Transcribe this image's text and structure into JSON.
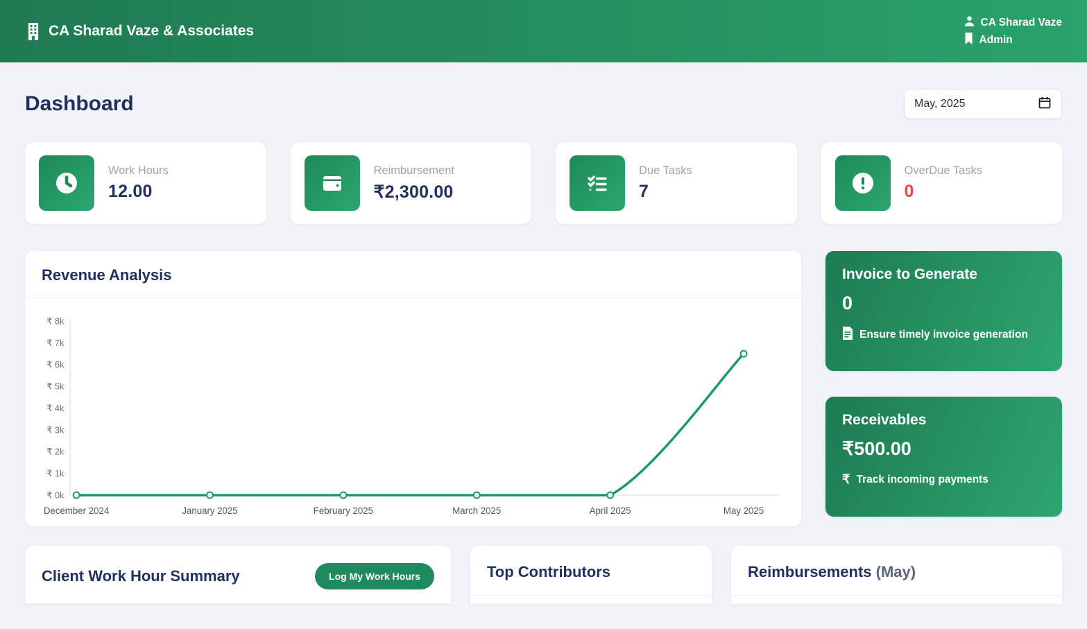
{
  "header": {
    "brand": "CA Sharad Vaze & Associates",
    "user_name": "CA Sharad Vaze",
    "user_role": "Admin"
  },
  "page": {
    "title": "Dashboard",
    "date_filter_value": "May, 2025"
  },
  "stats": [
    {
      "label": "Work Hours",
      "value": "12.00",
      "icon": "clock-icon",
      "value_color": "#22305e"
    },
    {
      "label": "Reimbursement",
      "value": "₹2,300.00",
      "icon": "wallet-icon",
      "value_color": "#22305e"
    },
    {
      "label": "Due Tasks",
      "value": "7",
      "icon": "checklist-icon",
      "value_color": "#22305e"
    },
    {
      "label": "OverDue Tasks",
      "value": "0",
      "icon": "exclamation-icon",
      "value_color": "#ef4444"
    }
  ],
  "revenue": {
    "title": "Revenue Analysis"
  },
  "chart_data": {
    "type": "line",
    "title": "Revenue Analysis",
    "x": [
      "December 2024",
      "January 2025",
      "February 2025",
      "March 2025",
      "April 2025",
      "May 2025"
    ],
    "series": [
      {
        "name": "Revenue",
        "values": [
          0,
          0,
          0,
          0,
          0,
          6500
        ]
      }
    ],
    "ylim": [
      0,
      8000
    ],
    "yticks": {
      "values": [
        0,
        1000,
        2000,
        3000,
        4000,
        5000,
        6000,
        7000,
        8000
      ],
      "labels": [
        "₹ 0k",
        "₹ 1k",
        "₹ 2k",
        "₹ 3k",
        "₹ 4k",
        "₹ 5k",
        "₹ 6k",
        "₹ 7k",
        "₹ 8k"
      ]
    },
    "line_color": "#1a9b66",
    "marker": "open-circle",
    "grid": false,
    "legend": "none"
  },
  "promos": [
    {
      "title": "Invoice to Generate",
      "value": "0",
      "note": "Ensure timely invoice generation",
      "icon": "invoice-icon"
    },
    {
      "title": "Receivables",
      "value": "₹500.00",
      "note": "Track incoming payments",
      "icon": "rupee-icon"
    }
  ],
  "bottom": {
    "client_summary_title": "Client Work Hour Summary",
    "log_button_label": "Log My Work Hours",
    "contributors_title": "Top Contributors",
    "reimbursements_title": "Reimbursements",
    "reimbursements_suffix": " (May)"
  },
  "colors": {
    "header_gradient_start": "#1f7a51",
    "header_gradient_end": "#2aa26b",
    "tile_green": "#1d8a58",
    "button_green": "#1f8a5b",
    "accent_navy": "#22305e",
    "danger_red": "#ef4444",
    "line_green": "#1a9b66",
    "page_bg": "#f1f3f8"
  }
}
